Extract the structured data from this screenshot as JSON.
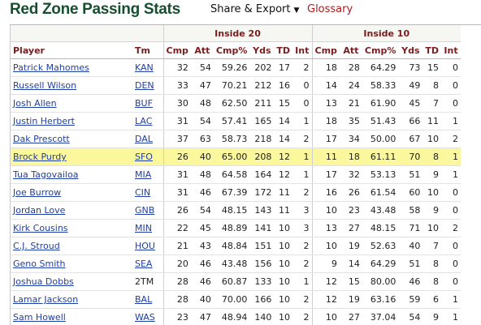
{
  "header": {
    "title": "Red Zone Passing Stats",
    "share_label": "Share & Export",
    "caret": "▼",
    "glossary_label": "Glossary"
  },
  "groups": {
    "in20": "Inside 20",
    "in10": "Inside 10"
  },
  "columns": {
    "player": "Player",
    "tm": "Tm",
    "cmp": "Cmp",
    "att": "Att",
    "pct": "Cmp%",
    "yds": "Yds",
    "td": "TD",
    "int": "Int"
  },
  "rows": [
    {
      "player": "Patrick Mahomes",
      "tm": "KAN",
      "tm_link": true,
      "a": [
        "32",
        "54",
        "59.26",
        "202",
        "17",
        "2"
      ],
      "b": [
        "18",
        "28",
        "64.29",
        "73",
        "15",
        "0"
      ]
    },
    {
      "player": "Russell Wilson",
      "tm": "DEN",
      "tm_link": true,
      "a": [
        "33",
        "47",
        "70.21",
        "212",
        "16",
        "0"
      ],
      "b": [
        "14",
        "24",
        "58.33",
        "49",
        "8",
        "0"
      ]
    },
    {
      "player": "Josh Allen",
      "tm": "BUF",
      "tm_link": true,
      "a": [
        "30",
        "48",
        "62.50",
        "211",
        "15",
        "0"
      ],
      "b": [
        "13",
        "21",
        "61.90",
        "45",
        "7",
        "0"
      ]
    },
    {
      "player": "Justin Herbert",
      "tm": "LAC",
      "tm_link": true,
      "a": [
        "31",
        "54",
        "57.41",
        "165",
        "14",
        "1"
      ],
      "b": [
        "18",
        "35",
        "51.43",
        "66",
        "11",
        "1"
      ]
    },
    {
      "player": "Dak Prescott",
      "tm": "DAL",
      "tm_link": true,
      "a": [
        "37",
        "63",
        "58.73",
        "218",
        "14",
        "2"
      ],
      "b": [
        "17",
        "34",
        "50.00",
        "67",
        "10",
        "2"
      ]
    },
    {
      "player": "Brock Purdy",
      "tm": "SFO",
      "tm_link": true,
      "highlight": true,
      "a": [
        "26",
        "40",
        "65.00",
        "208",
        "12",
        "1"
      ],
      "b": [
        "11",
        "18",
        "61.11",
        "70",
        "8",
        "1"
      ]
    },
    {
      "player": "Tua Tagovailoa",
      "tm": "MIA",
      "tm_link": true,
      "a": [
        "31",
        "48",
        "64.58",
        "164",
        "12",
        "1"
      ],
      "b": [
        "17",
        "32",
        "53.13",
        "51",
        "9",
        "1"
      ]
    },
    {
      "player": "Joe Burrow",
      "tm": "CIN",
      "tm_link": true,
      "a": [
        "31",
        "46",
        "67.39",
        "172",
        "11",
        "2"
      ],
      "b": [
        "16",
        "26",
        "61.54",
        "60",
        "10",
        "0"
      ]
    },
    {
      "player": "Jordan Love",
      "tm": "GNB",
      "tm_link": true,
      "a": [
        "26",
        "54",
        "48.15",
        "143",
        "11",
        "3"
      ],
      "b": [
        "10",
        "23",
        "43.48",
        "58",
        "9",
        "0"
      ]
    },
    {
      "player": "Kirk Cousins",
      "tm": "MIN",
      "tm_link": true,
      "a": [
        "22",
        "45",
        "48.89",
        "141",
        "10",
        "3"
      ],
      "b": [
        "13",
        "27",
        "48.15",
        "71",
        "10",
        "2"
      ]
    },
    {
      "player": "C.J. Stroud",
      "tm": "HOU",
      "tm_link": true,
      "a": [
        "21",
        "43",
        "48.84",
        "151",
        "10",
        "2"
      ],
      "b": [
        "10",
        "19",
        "52.63",
        "40",
        "7",
        "0"
      ]
    },
    {
      "player": "Geno Smith",
      "tm": "SEA",
      "tm_link": true,
      "a": [
        "20",
        "46",
        "43.48",
        "156",
        "10",
        "2"
      ],
      "b": [
        "9",
        "14",
        "64.29",
        "51",
        "8",
        "0"
      ]
    },
    {
      "player": "Joshua Dobbs",
      "tm": "2TM",
      "tm_link": false,
      "a": [
        "28",
        "46",
        "60.87",
        "133",
        "10",
        "1"
      ],
      "b": [
        "12",
        "15",
        "80.00",
        "46",
        "8",
        "0"
      ]
    },
    {
      "player": "Lamar Jackson",
      "tm": "BAL",
      "tm_link": true,
      "a": [
        "28",
        "40",
        "70.00",
        "166",
        "10",
        "2"
      ],
      "b": [
        "12",
        "19",
        "63.16",
        "59",
        "6",
        "1"
      ]
    },
    {
      "player": "Sam Howell",
      "tm": "WAS",
      "tm_link": true,
      "a": [
        "23",
        "47",
        "48.94",
        "140",
        "10",
        "2"
      ],
      "b": [
        "10",
        "27",
        "37.04",
        "54",
        "9",
        "1"
      ]
    }
  ]
}
